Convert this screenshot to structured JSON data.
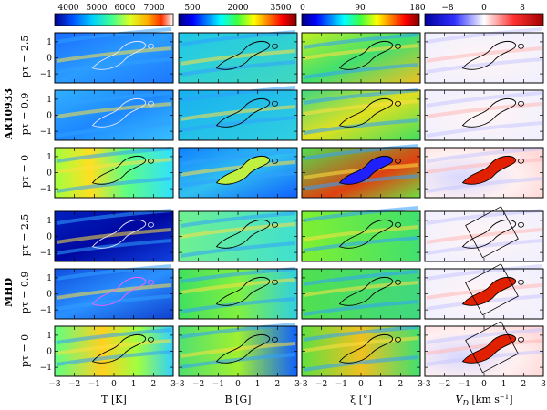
{
  "figure": {
    "colorbars": [
      {
        "variable": "T",
        "ticks": [
          "4000",
          "5000",
          "6000",
          "7000"
        ],
        "colormap": "jet-yellow-red"
      },
      {
        "variable": "B",
        "ticks": [
          "500",
          "2000",
          "3500"
        ],
        "colormap": "jet"
      },
      {
        "variable": "xi",
        "ticks": [
          "0",
          "90",
          "180"
        ],
        "colormap": "jet"
      },
      {
        "variable": "VD",
        "ticks": [
          "−8",
          "0",
          "8"
        ],
        "colormap": "blue-white-red"
      }
    ],
    "column_labels": [
      "T [K]",
      "B [G]",
      "ξ [°]",
      "V",
      "D",
      " [km s",
      "−1",
      "]"
    ],
    "groups": [
      {
        "label": "AR10933",
        "rows": [
          "pτ = 2.5",
          "pτ = 0.9",
          "pτ = 0"
        ]
      },
      {
        "label": "MHD",
        "rows": [
          "pτ = 2.5",
          "pτ = 0.9",
          "pτ = 0"
        ]
      }
    ],
    "y_ticks": [
      "1",
      "0",
      "−1"
    ],
    "x_ticks": [
      "−3",
      "−2",
      "−1",
      "0",
      "1",
      "2",
      "3"
    ]
  }
}
